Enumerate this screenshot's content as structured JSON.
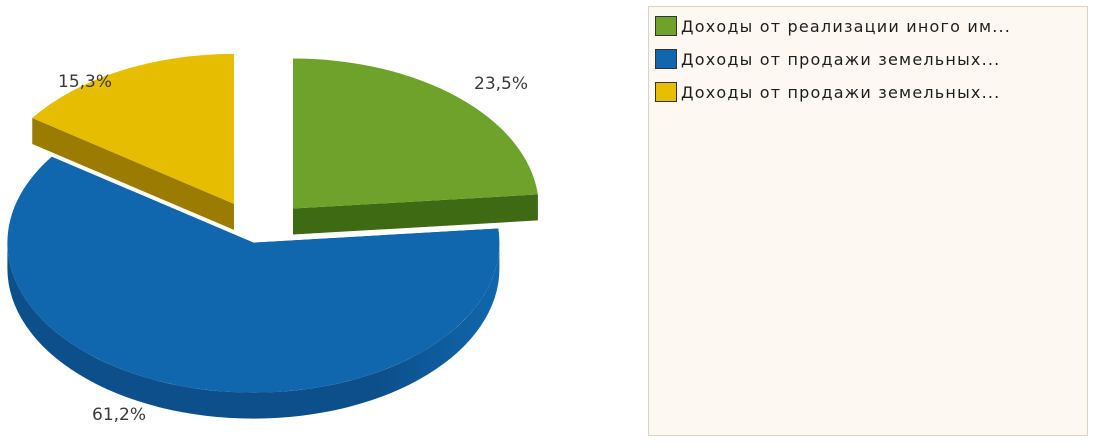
{
  "chart_data": {
    "type": "pie",
    "style": "3d-exploded",
    "slices": [
      {
        "label": "Доходы от реализации иного им...",
        "value": 23.5,
        "value_label": "23,5%",
        "color": "#6ea22b",
        "side_color": "#3f6a14"
      },
      {
        "label": "Доходы от продажи земельных...",
        "value": 61.2,
        "value_label": "61,2%",
        "color": "#1067ad",
        "side_color": "#0c4f8a"
      },
      {
        "label": "Доходы от продажи земельных...",
        "value": 15.3,
        "value_label": "15,3%",
        "color": "#e6bd00",
        "side_color": "#9c7c00"
      }
    ],
    "legend_position": "right"
  }
}
